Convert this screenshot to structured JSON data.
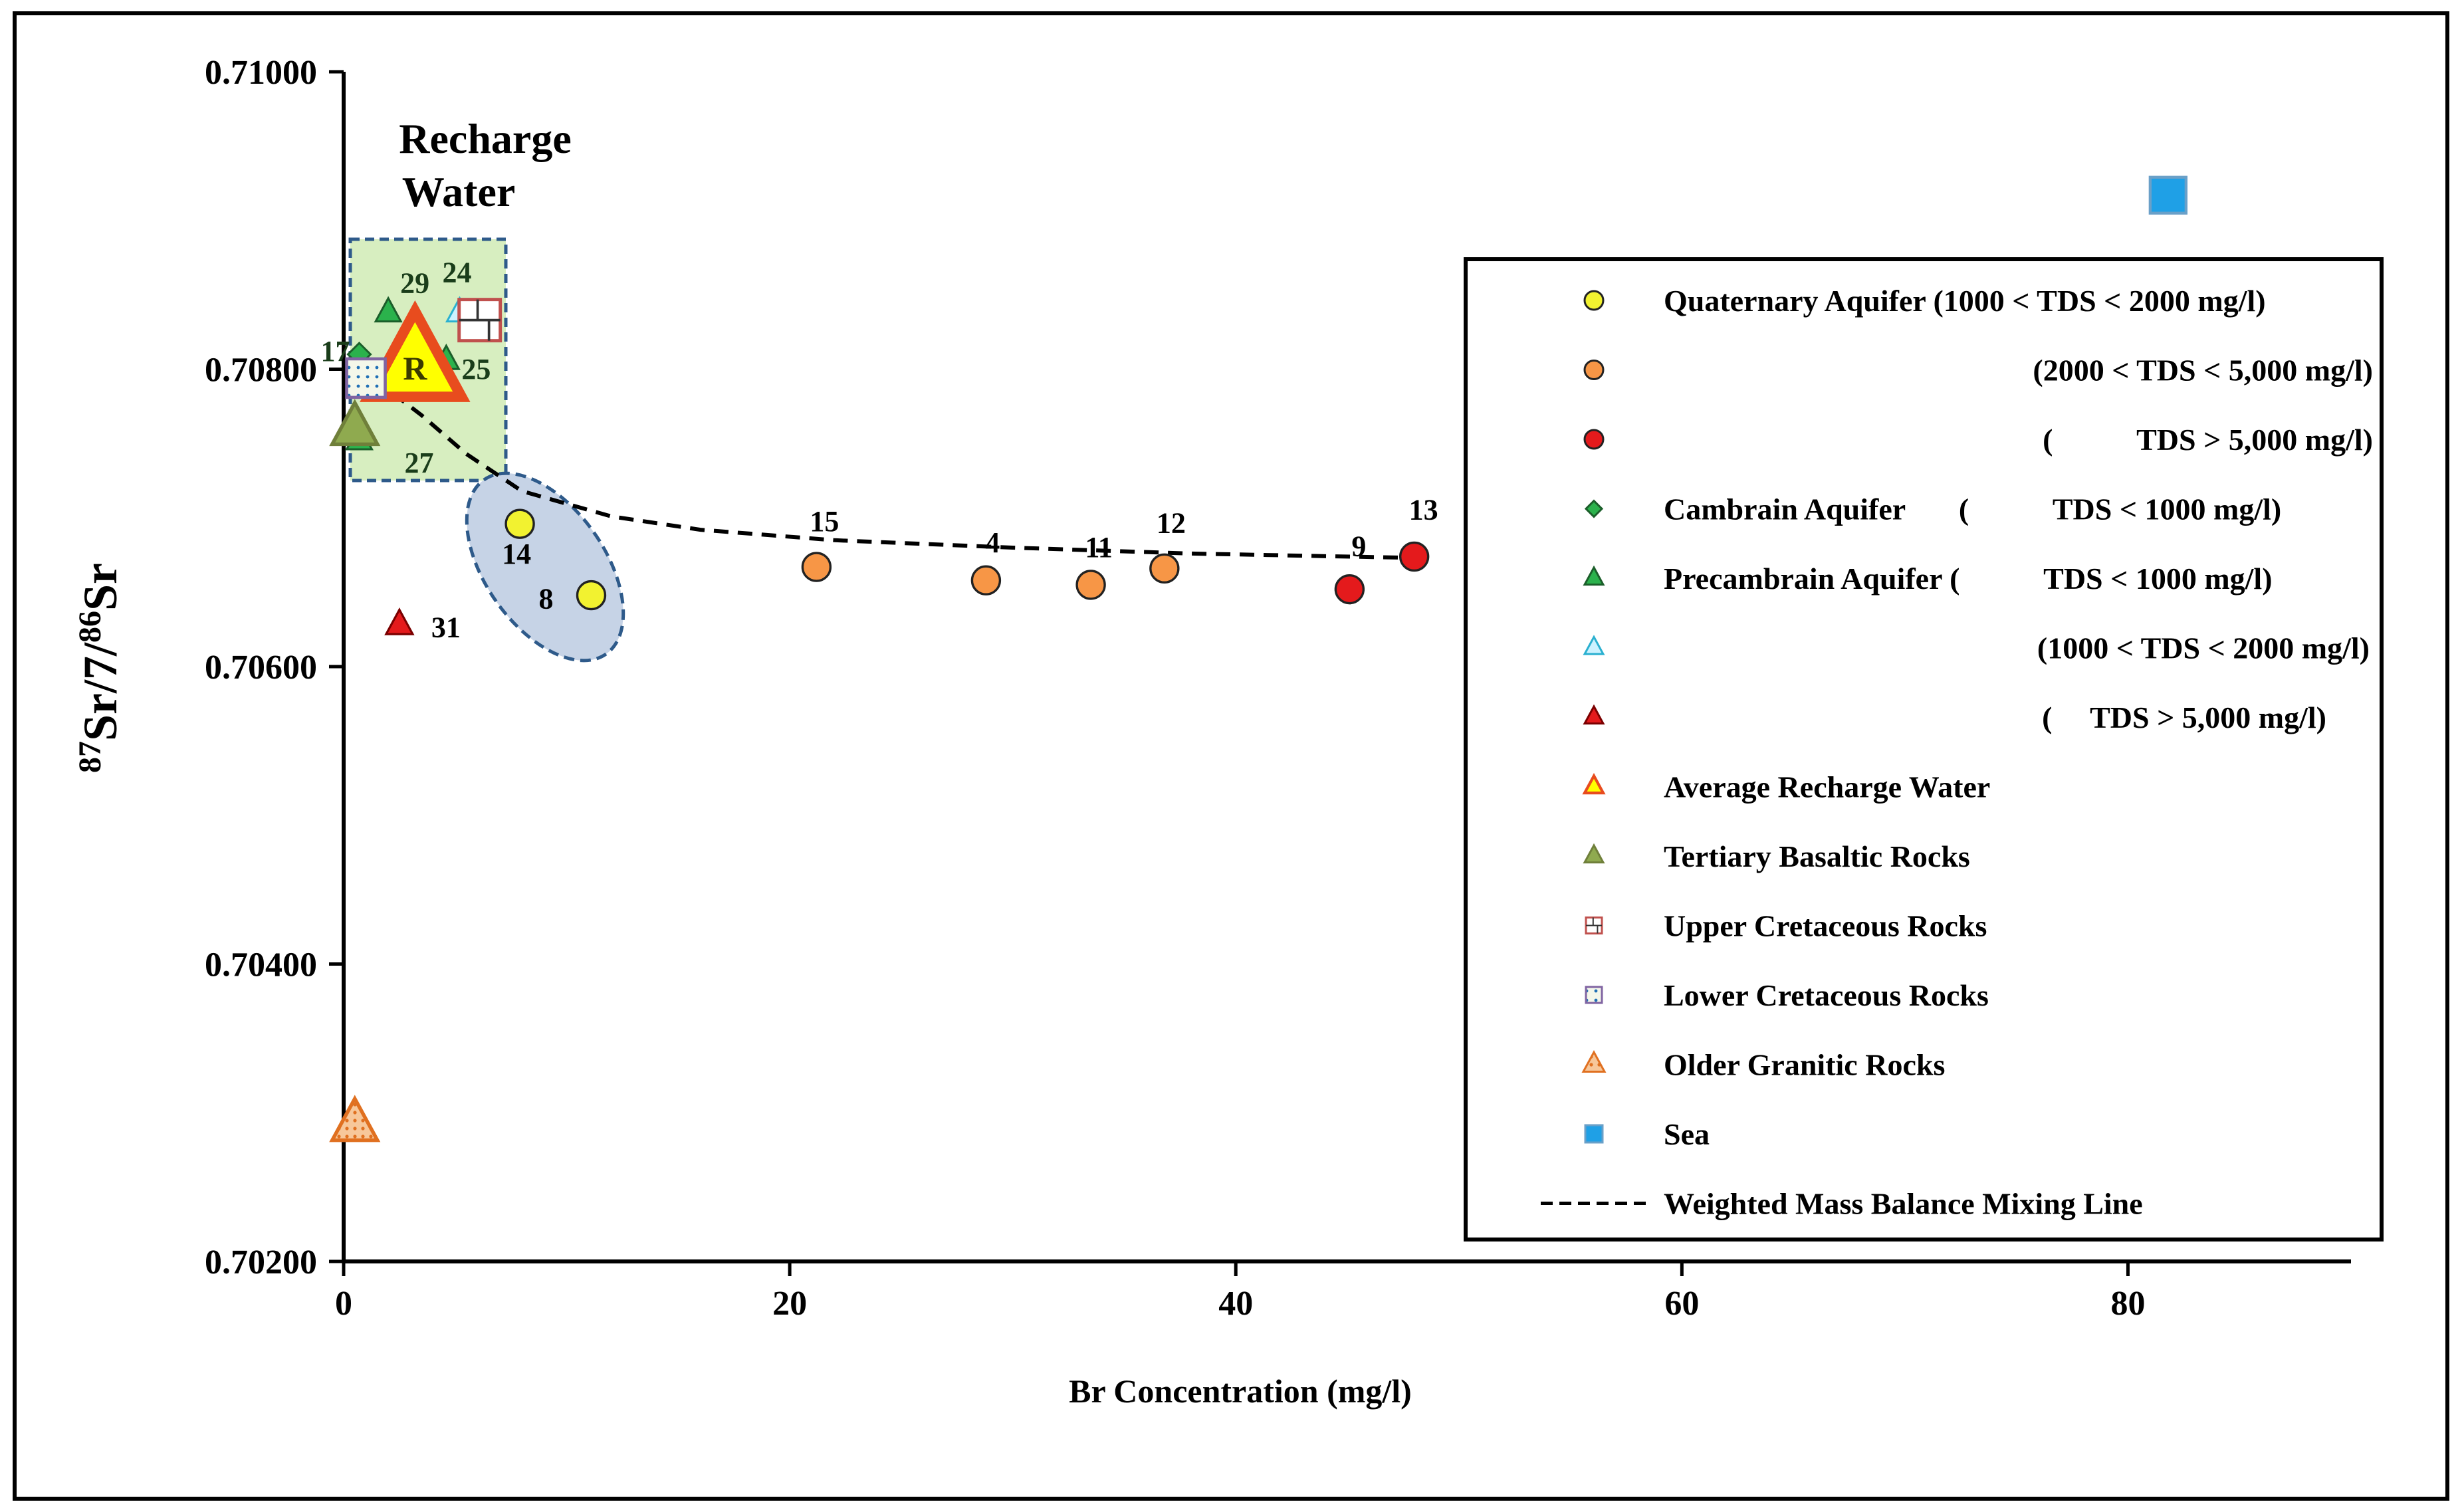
{
  "chart_data": {
    "type": "scatter",
    "xlabel": "Br Concentration  (mg/l)",
    "ylabel": "87Sr/7/86Sr",
    "xlim": [
      0,
      90
    ],
    "ylim": [
      0.702,
      0.71
    ],
    "xticks": [
      0,
      20,
      40,
      60,
      80
    ],
    "yticks": [
      0.702,
      0.704,
      0.706,
      0.708,
      0.71
    ],
    "ytick_labels": [
      "0.70200",
      "0.70400",
      "0.70600",
      "0.70800",
      "0.71000"
    ],
    "grid": false,
    "legend_position": "right",
    "annotations": {
      "recharge_line1": "Recharge",
      "recharge_line2": "Water",
      "recharge_marker": "R"
    },
    "series": [
      {
        "name": "Quaternary Aquifer (1000 < TDS < 2000 mg/l)",
        "marker": "circle",
        "color": "#f2f230",
        "points": [
          {
            "x": 7.9,
            "y": 0.70696,
            "label": "14"
          },
          {
            "x": 11.1,
            "y": 0.70648,
            "label": "8"
          }
        ]
      },
      {
        "name": "(2000 < TDS < 5,000 mg/l)",
        "marker": "circle",
        "color": "#f79646",
        "points": [
          {
            "x": 21.2,
            "y": 0.70667,
            "label": "15"
          },
          {
            "x": 28.8,
            "y": 0.70658,
            "label": "4"
          },
          {
            "x": 33.5,
            "y": 0.70655,
            "label": "11"
          },
          {
            "x": 36.8,
            "y": 0.70666,
            "label": "12"
          }
        ]
      },
      {
        "name": "(           TDS > 5,000 mg/l)",
        "marker": "circle",
        "color": "#e41a1c",
        "points": [
          {
            "x": 45.1,
            "y": 0.70652,
            "label": "9"
          },
          {
            "x": 48.0,
            "y": 0.70674,
            "label": "13"
          }
        ]
      },
      {
        "name": "Cambrain Aquifer       (           TDS < 1000 mg/l)",
        "marker": "diamond",
        "color": "#2bb24c",
        "points": [
          {
            "x": 0.7,
            "y": 0.7081,
            "label": "17"
          }
        ]
      },
      {
        "name": "Precambrain Aquifer (           TDS < 1000 mg/l)",
        "marker": "triangle",
        "color": "#2bb24c",
        "points": [
          {
            "x": 2.0,
            "y": 0.70838,
            "label": "29"
          },
          {
            "x": 4.6,
            "y": 0.70806,
            "label": "25"
          },
          {
            "x": 0.7,
            "y": 0.70752,
            "label": "27"
          }
        ]
      },
      {
        "name": "(1000 < TDS < 2000 mg/l)",
        "marker": "triangle",
        "color": "#ccf2ff",
        "points": [
          {
            "x": 5.2,
            "y": 0.70838,
            "label": "24"
          }
        ]
      },
      {
        "name": "(     TDS > 5,000 mg/l)",
        "marker": "triangle",
        "color": "#e41a1c",
        "points": [
          {
            "x": 2.5,
            "y": 0.70628,
            "label": "31"
          }
        ]
      },
      {
        "name": "Average Recharge Water",
        "marker": "triangle",
        "color": "#ffff00",
        "points": [
          {
            "x": 3.2,
            "y": 0.70803,
            "label": "R"
          }
        ]
      },
      {
        "name": "Tertiary Basaltic Rocks",
        "marker": "triangle",
        "color": "#8faa4f",
        "points": [
          {
            "x": 0.5,
            "y": 0.7076
          }
        ]
      },
      {
        "name": "Upper Cretaceous Rocks",
        "marker": "square-brick",
        "color": "#c0504d",
        "points": [
          {
            "x": 6.1,
            "y": 0.70833
          }
        ]
      },
      {
        "name": "Lower Cretaceous Rocks",
        "marker": "square-dotted",
        "color": "#8064a2",
        "points": [
          {
            "x": 1.0,
            "y": 0.70794
          }
        ]
      },
      {
        "name": "Older Granitic Rocks",
        "marker": "triangle-dotted",
        "color": "#f79646",
        "points": [
          {
            "x": 0.5,
            "y": 0.70292
          }
        ]
      },
      {
        "name": "Sea",
        "marker": "square",
        "color": "#1fa0e6",
        "points": [
          {
            "x": 81.8,
            "y": 0.70917
          }
        ]
      },
      {
        "name": "Weighted Mass Balance Mixing Line",
        "marker": "dashed-line",
        "color": "#000000",
        "points": [
          {
            "x": 0.3,
            "y": 0.70798
          },
          {
            "x": 1.5,
            "y": 0.70792
          },
          {
            "x": 3.5,
            "y": 0.70769
          },
          {
            "x": 5.5,
            "y": 0.70743
          },
          {
            "x": 8.0,
            "y": 0.70718
          },
          {
            "x": 12.0,
            "y": 0.70701
          },
          {
            "x": 16.0,
            "y": 0.70692
          },
          {
            "x": 22.0,
            "y": 0.70685
          },
          {
            "x": 30.0,
            "y": 0.7068
          },
          {
            "x": 38.0,
            "y": 0.70676
          },
          {
            "x": 48.5,
            "y": 0.70673
          }
        ]
      }
    ]
  }
}
